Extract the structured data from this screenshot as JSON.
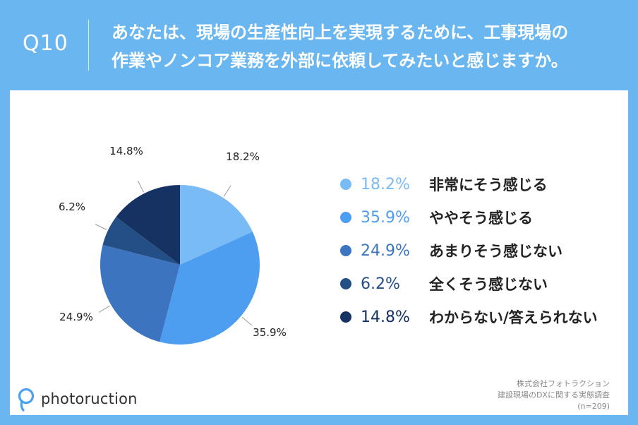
{
  "header": {
    "question_number": "Q10",
    "question_line1": "あなたは、現場の生産性向上を実現するために、工事現場の",
    "question_line2": "作業やノンコア業務を外部に依頼してみたいと感じますか。"
  },
  "chart_data": {
    "type": "pie",
    "title": "",
    "start_angle": "12 o'clock",
    "direction": "clockwise",
    "slices": [
      {
        "label": "非常にそう感じる",
        "value": 18.2,
        "text": "18.2%",
        "color": "#79bcf5"
      },
      {
        "label": "ややそう感じる",
        "value": 35.9,
        "text": "35.9%",
        "color": "#4d9ef0"
      },
      {
        "label": "あまりそう感じない",
        "value": 24.9,
        "text": "24.9%",
        "color": "#3c74bf"
      },
      {
        "label": "全くそう感じない",
        "value": 6.2,
        "text": "6.2%",
        "color": "#244e86"
      },
      {
        "label": "わからない/答えられない",
        "value": 14.8,
        "text": "14.8%",
        "color": "#163262"
      }
    ]
  },
  "footer": {
    "brand": "photoruction",
    "source_line1": "株式会社フォトラクション",
    "source_line2": "建設現場のDXに関する実態調査",
    "source_line3": "(n=209)"
  },
  "colors": {
    "background": "#6ab6f1",
    "card": "#ffffff",
    "brand": "#4aa3f0"
  }
}
